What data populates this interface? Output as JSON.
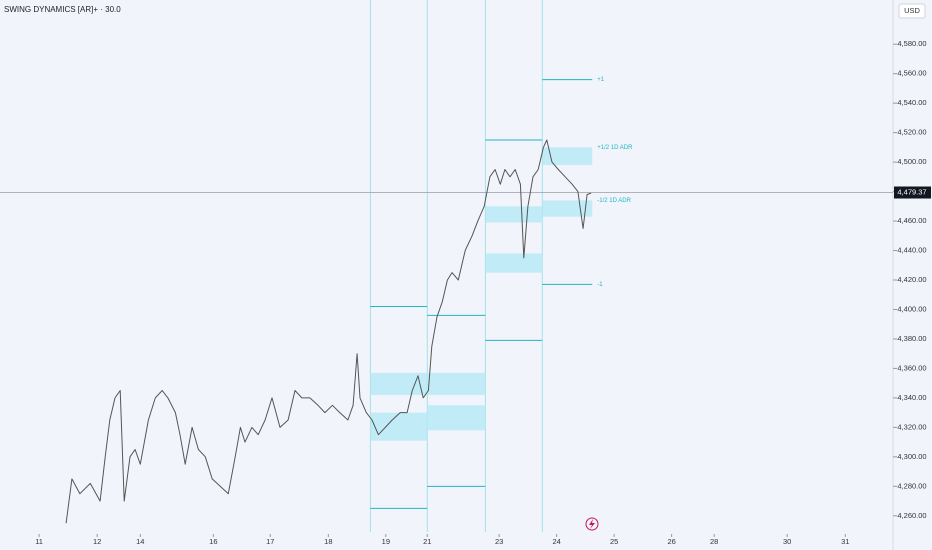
{
  "chart_data": {
    "type": "line",
    "title": "SWING DYNAMICS [AR]+ · 30.0",
    "currency": "USD",
    "xlim": [
      -0.68,
      14.85
    ],
    "ylim": [
      4249,
      4610
    ],
    "xticks": [
      {
        "value": 0,
        "label": "11"
      },
      {
        "value": 1.01,
        "label": "12"
      },
      {
        "value": 1.76,
        "label": "14"
      },
      {
        "value": 3.03,
        "label": "16"
      },
      {
        "value": 4.02,
        "label": "17"
      },
      {
        "value": 5.03,
        "label": "18"
      },
      {
        "value": 6.03,
        "label": "19"
      },
      {
        "value": 6.75,
        "label": "21"
      },
      {
        "value": 8.0,
        "label": "23"
      },
      {
        "value": 9.0,
        "label": "24"
      },
      {
        "value": 10.0,
        "label": "25"
      },
      {
        "value": 11.0,
        "label": "26"
      },
      {
        "value": 11.74,
        "label": "28"
      },
      {
        "value": 13.01,
        "label": "30"
      },
      {
        "value": 14.02,
        "label": "31"
      }
    ],
    "yticks": [
      {
        "value": 4260,
        "label": "4,260.00"
      },
      {
        "value": 4280,
        "label": "4,280.00"
      },
      {
        "value": 4300,
        "label": "4,300.00"
      },
      {
        "value": 4320,
        "label": "4,320.00"
      },
      {
        "value": 4340,
        "label": "4,340.00"
      },
      {
        "value": 4360,
        "label": "4,360.00"
      },
      {
        "value": 4380,
        "label": "4,380.00"
      },
      {
        "value": 4400,
        "label": "4,400.00"
      },
      {
        "value": 4420,
        "label": "4,420.00"
      },
      {
        "value": 4440,
        "label": "4,440.00"
      },
      {
        "value": 4460,
        "label": "4,460.00"
      },
      {
        "value": 4480,
        "label": "4,480.00"
      },
      {
        "value": 4500,
        "label": "4,500.00"
      },
      {
        "value": 4520,
        "label": "4,520.00"
      },
      {
        "value": 4540,
        "label": "4,540.00"
      },
      {
        "value": 4560,
        "label": "4,560.00"
      },
      {
        "value": 4580,
        "label": "4,580.00"
      }
    ],
    "last_price": {
      "value": 4479.37,
      "label": "4,479.37"
    },
    "series": [
      {
        "color": "#555555",
        "x": [
          0.47,
          0.57,
          0.71,
          0.89,
          1.06,
          1.15,
          1.23,
          1.32,
          1.41,
          1.48,
          1.58,
          1.67,
          1.76,
          1.9,
          2.02,
          2.14,
          2.24,
          2.37,
          2.45,
          2.54,
          2.66,
          2.77,
          2.89,
          3.01,
          3.15,
          3.29,
          3.41,
          3.5,
          3.58,
          3.7,
          3.81,
          3.93,
          4.05,
          4.19,
          4.33,
          4.45,
          4.57,
          4.71,
          4.85,
          4.97,
          5.1,
          5.23,
          5.37,
          5.46,
          5.53,
          5.58,
          5.69,
          5.79,
          5.9,
          6.02,
          6.14,
          6.28,
          6.4,
          6.49,
          6.59,
          6.68,
          6.77,
          6.83,
          6.92,
          7.01,
          7.1,
          7.18,
          7.29,
          7.41,
          7.53,
          7.63,
          7.74,
          7.84,
          7.93,
          8.02,
          8.1,
          8.19,
          8.28,
          8.37,
          8.43,
          8.5,
          8.59,
          8.68,
          8.77,
          8.83,
          8.92,
          9.03,
          9.15,
          9.27,
          9.37,
          9.46,
          9.53,
          9.6
        ],
        "values": [
          4255,
          4285,
          4275,
          4282,
          4270,
          4300,
          4325,
          4340,
          4345,
          4270,
          4300,
          4305,
          4295,
          4325,
          4340,
          4345,
          4340,
          4330,
          4315,
          4295,
          4320,
          4305,
          4300,
          4285,
          4280,
          4275,
          4300,
          4320,
          4310,
          4320,
          4315,
          4325,
          4340,
          4320,
          4325,
          4345,
          4340,
          4340,
          4335,
          4330,
          4335,
          4330,
          4325,
          4335,
          4370,
          4340,
          4330,
          4325,
          4315,
          4320,
          4325,
          4330,
          4330,
          4345,
          4355,
          4340,
          4345,
          4375,
          4395,
          4405,
          4420,
          4425,
          4420,
          4440,
          4450,
          4460,
          4470,
          4490,
          4495,
          4485,
          4495,
          4490,
          4495,
          4485,
          4435,
          4470,
          4490,
          4495,
          4510,
          4515,
          4500,
          4495,
          4490,
          4485,
          4480,
          4455,
          4478,
          4479
        ]
      }
    ],
    "sessions": [
      5.76,
      6.75,
      7.76,
      8.75
    ],
    "zones": [
      {
        "x0": 5.76,
        "x1": 7.76,
        "y0": 4342,
        "y1": 4357
      },
      {
        "x0": 5.76,
        "x1": 6.75,
        "y0": 4311,
        "y1": 4330
      },
      {
        "x0": 6.75,
        "x1": 7.76,
        "y0": 4318,
        "y1": 4335
      },
      {
        "x0": 7.76,
        "x1": 8.75,
        "y0": 4459,
        "y1": 4470
      },
      {
        "x0": 7.76,
        "x1": 8.75,
        "y0": 4425,
        "y1": 4438
      },
      {
        "x0": 8.75,
        "x1": 9.62,
        "y0": 4498,
        "y1": 4510,
        "label": "+1/2 1D ADR"
      },
      {
        "x0": 8.75,
        "x1": 9.62,
        "y0": 4463,
        "y1": 4474,
        "label": "-1/2 1D ADR"
      }
    ],
    "levels": [
      {
        "x0": 5.76,
        "x1": 6.75,
        "y": 4402
      },
      {
        "x0": 5.76,
        "x1": 6.75,
        "y": 4265
      },
      {
        "x0": 6.75,
        "x1": 7.76,
        "y": 4396
      },
      {
        "x0": 6.75,
        "x1": 7.76,
        "y": 4280
      },
      {
        "x0": 7.76,
        "x1": 8.75,
        "y": 4515
      },
      {
        "x0": 7.76,
        "x1": 8.75,
        "y": 4379
      },
      {
        "x0": 8.75,
        "x1": 9.62,
        "y": 4556,
        "label": "+1"
      },
      {
        "x0": 8.75,
        "x1": 9.62,
        "y": 4417,
        "label": "-1"
      }
    ]
  }
}
